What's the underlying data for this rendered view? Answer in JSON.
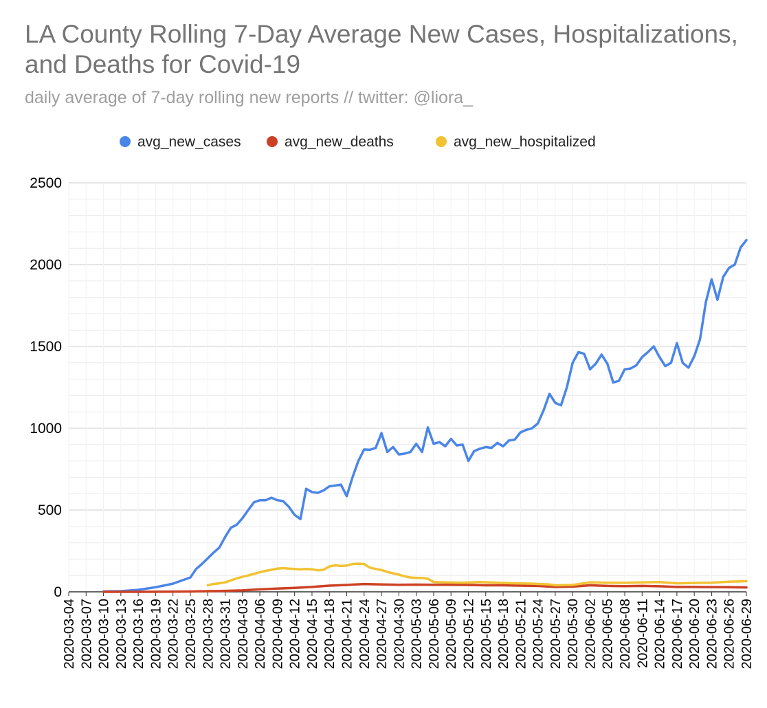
{
  "chart_data": {
    "type": "line",
    "title": "LA County Rolling 7-Day Average New Cases, Hospitalizations, and Deaths for Covid-19",
    "subtitle": "daily average of 7-day rolling new reports // twitter: @liora_",
    "xlabel": "",
    "ylabel": "",
    "ylim": [
      0,
      2500
    ],
    "yticks": [
      0,
      500,
      1000,
      1500,
      2000,
      2500
    ],
    "grid": true,
    "legend_position": "top",
    "x_start": "2020-03-04",
    "x_end": "2020-06-29",
    "x_tick_labels": [
      "2020-03-04",
      "2020-03-07",
      "2020-03-10",
      "2020-03-13",
      "2020-03-16",
      "2020-03-19",
      "2020-03-22",
      "2020-03-25",
      "2020-03-28",
      "2020-03-31",
      "2020-04-03",
      "2020-04-06",
      "2020-04-09",
      "2020-04-12",
      "2020-04-15",
      "2020-04-18",
      "2020-04-21",
      "2020-04-24",
      "2020-04-27",
      "2020-04-30",
      "2020-05-03",
      "2020-05-06",
      "2020-05-09",
      "2020-05-12",
      "2020-05-15",
      "2020-05-18",
      "2020-05-21",
      "2020-05-24",
      "2020-05-27",
      "2020-05-30",
      "2020-06-02",
      "2020-06-05",
      "2020-06-08",
      "2020-06-11",
      "2020-06-14",
      "2020-06-17",
      "2020-06-20",
      "2020-06-23",
      "2020-06-26",
      "2020-06-29"
    ],
    "series": [
      {
        "name": "avg_new_cases",
        "color": "#4a86e8",
        "points": [
          [
            "2020-03-10",
            2
          ],
          [
            "2020-03-13",
            4
          ],
          [
            "2020-03-16",
            12
          ],
          [
            "2020-03-19",
            28
          ],
          [
            "2020-03-22",
            50
          ],
          [
            "2020-03-24",
            75
          ],
          [
            "2020-03-25",
            88
          ],
          [
            "2020-03-26",
            140
          ],
          [
            "2020-03-27",
            170
          ],
          [
            "2020-03-28",
            205
          ],
          [
            "2020-03-29",
            240
          ],
          [
            "2020-03-30",
            270
          ],
          [
            "2020-03-31",
            335
          ],
          [
            "2020-04-01",
            392
          ],
          [
            "2020-04-02",
            410
          ],
          [
            "2020-04-03",
            450
          ],
          [
            "2020-04-04",
            500
          ],
          [
            "2020-04-05",
            548
          ],
          [
            "2020-04-06",
            560
          ],
          [
            "2020-04-07",
            560
          ],
          [
            "2020-04-08",
            575
          ],
          [
            "2020-04-09",
            560
          ],
          [
            "2020-04-10",
            555
          ],
          [
            "2020-04-11",
            520
          ],
          [
            "2020-04-12",
            470
          ],
          [
            "2020-04-13",
            445
          ],
          [
            "2020-04-14",
            630
          ],
          [
            "2020-04-15",
            610
          ],
          [
            "2020-04-16",
            605
          ],
          [
            "2020-04-17",
            620
          ],
          [
            "2020-04-18",
            645
          ],
          [
            "2020-04-19",
            650
          ],
          [
            "2020-04-20",
            655
          ],
          [
            "2020-04-21",
            585
          ],
          [
            "2020-04-22",
            700
          ],
          [
            "2020-04-23",
            800
          ],
          [
            "2020-04-24",
            870
          ],
          [
            "2020-04-25",
            868
          ],
          [
            "2020-04-26",
            880
          ],
          [
            "2020-04-27",
            970
          ],
          [
            "2020-04-28",
            855
          ],
          [
            "2020-04-29",
            885
          ],
          [
            "2020-04-30",
            840
          ],
          [
            "2020-05-01",
            845
          ],
          [
            "2020-05-02",
            855
          ],
          [
            "2020-05-03",
            905
          ],
          [
            "2020-05-04",
            855
          ],
          [
            "2020-05-05",
            1005
          ],
          [
            "2020-05-06",
            905
          ],
          [
            "2020-05-07",
            915
          ],
          [
            "2020-05-08",
            890
          ],
          [
            "2020-05-09",
            935
          ],
          [
            "2020-05-10",
            895
          ],
          [
            "2020-05-11",
            900
          ],
          [
            "2020-05-12",
            800
          ],
          [
            "2020-05-13",
            860
          ],
          [
            "2020-05-14",
            875
          ],
          [
            "2020-05-15",
            885
          ],
          [
            "2020-05-16",
            880
          ],
          [
            "2020-05-17",
            910
          ],
          [
            "2020-05-18",
            890
          ],
          [
            "2020-05-19",
            925
          ],
          [
            "2020-05-20",
            930
          ],
          [
            "2020-05-21",
            975
          ],
          [
            "2020-05-22",
            990
          ],
          [
            "2020-05-23",
            1000
          ],
          [
            "2020-05-24",
            1030
          ],
          [
            "2020-05-25",
            1110
          ],
          [
            "2020-05-26",
            1210
          ],
          [
            "2020-05-27",
            1155
          ],
          [
            "2020-05-28",
            1140
          ],
          [
            "2020-05-29",
            1250
          ],
          [
            "2020-05-30",
            1400
          ],
          [
            "2020-05-31",
            1465
          ],
          [
            "2020-06-01",
            1455
          ],
          [
            "2020-06-02",
            1360
          ],
          [
            "2020-06-03",
            1395
          ],
          [
            "2020-06-04",
            1450
          ],
          [
            "2020-06-05",
            1395
          ],
          [
            "2020-06-06",
            1280
          ],
          [
            "2020-06-07",
            1290
          ],
          [
            "2020-06-08",
            1360
          ],
          [
            "2020-06-09",
            1365
          ],
          [
            "2020-06-10",
            1385
          ],
          [
            "2020-06-11",
            1435
          ],
          [
            "2020-06-12",
            1465
          ],
          [
            "2020-06-13",
            1500
          ],
          [
            "2020-06-14",
            1435
          ],
          [
            "2020-06-15",
            1380
          ],
          [
            "2020-06-16",
            1400
          ],
          [
            "2020-06-17",
            1520
          ],
          [
            "2020-06-18",
            1400
          ],
          [
            "2020-06-19",
            1370
          ],
          [
            "2020-06-20",
            1440
          ],
          [
            "2020-06-21",
            1545
          ],
          [
            "2020-06-22",
            1770
          ],
          [
            "2020-06-23",
            1910
          ],
          [
            "2020-06-24",
            1785
          ],
          [
            "2020-06-25",
            1925
          ],
          [
            "2020-06-26",
            1980
          ],
          [
            "2020-06-27",
            2000
          ],
          [
            "2020-06-28",
            2105
          ],
          [
            "2020-06-29",
            2150
          ]
        ]
      },
      {
        "name": "avg_new_deaths",
        "color": "#cc4125",
        "points": [
          [
            "2020-03-10",
            0
          ],
          [
            "2020-03-16",
            0
          ],
          [
            "2020-03-22",
            1
          ],
          [
            "2020-03-25",
            2
          ],
          [
            "2020-03-28",
            4
          ],
          [
            "2020-03-31",
            6
          ],
          [
            "2020-04-03",
            9
          ],
          [
            "2020-04-06",
            15
          ],
          [
            "2020-04-09",
            20
          ],
          [
            "2020-04-12",
            24
          ],
          [
            "2020-04-15",
            30
          ],
          [
            "2020-04-18",
            38
          ],
          [
            "2020-04-21",
            42
          ],
          [
            "2020-04-24",
            48
          ],
          [
            "2020-04-27",
            45
          ],
          [
            "2020-04-30",
            43
          ],
          [
            "2020-05-03",
            44
          ],
          [
            "2020-05-06",
            43
          ],
          [
            "2020-05-09",
            43
          ],
          [
            "2020-05-12",
            42
          ],
          [
            "2020-05-15",
            40
          ],
          [
            "2020-05-18",
            40
          ],
          [
            "2020-05-21",
            38
          ],
          [
            "2020-05-24",
            36
          ],
          [
            "2020-05-27",
            30
          ],
          [
            "2020-05-30",
            32
          ],
          [
            "2020-06-02",
            40
          ],
          [
            "2020-06-05",
            36
          ],
          [
            "2020-06-08",
            35
          ],
          [
            "2020-06-11",
            36
          ],
          [
            "2020-06-14",
            34
          ],
          [
            "2020-06-17",
            30
          ],
          [
            "2020-06-20",
            30
          ],
          [
            "2020-06-23",
            29
          ],
          [
            "2020-06-26",
            28
          ],
          [
            "2020-06-29",
            27
          ]
        ]
      },
      {
        "name": "avg_new_hospitalized",
        "color": "#f1c232",
        "points": [
          [
            "2020-03-28",
            40
          ],
          [
            "2020-03-29",
            48
          ],
          [
            "2020-03-30",
            52
          ],
          [
            "2020-03-31",
            58
          ],
          [
            "2020-04-01",
            70
          ],
          [
            "2020-04-02",
            82
          ],
          [
            "2020-04-03",
            92
          ],
          [
            "2020-04-04",
            100
          ],
          [
            "2020-04-05",
            110
          ],
          [
            "2020-04-06",
            120
          ],
          [
            "2020-04-07",
            128
          ],
          [
            "2020-04-08",
            135
          ],
          [
            "2020-04-09",
            142
          ],
          [
            "2020-04-10",
            145
          ],
          [
            "2020-04-11",
            142
          ],
          [
            "2020-04-12",
            140
          ],
          [
            "2020-04-13",
            138
          ],
          [
            "2020-04-14",
            140
          ],
          [
            "2020-04-15",
            138
          ],
          [
            "2020-04-16",
            132
          ],
          [
            "2020-04-17",
            135
          ],
          [
            "2020-04-18",
            155
          ],
          [
            "2020-04-19",
            162
          ],
          [
            "2020-04-20",
            158
          ],
          [
            "2020-04-21",
            160
          ],
          [
            "2020-04-22",
            170
          ],
          [
            "2020-04-23",
            172
          ],
          [
            "2020-04-24",
            170
          ],
          [
            "2020-04-25",
            148
          ],
          [
            "2020-04-26",
            140
          ],
          [
            "2020-04-27",
            133
          ],
          [
            "2020-04-28",
            122
          ],
          [
            "2020-04-29",
            113
          ],
          [
            "2020-04-30",
            105
          ],
          [
            "2020-05-01",
            95
          ],
          [
            "2020-05-02",
            88
          ],
          [
            "2020-05-03",
            85
          ],
          [
            "2020-05-04",
            85
          ],
          [
            "2020-05-05",
            80
          ],
          [
            "2020-05-06",
            60
          ],
          [
            "2020-05-08",
            58
          ],
          [
            "2020-05-11",
            56
          ],
          [
            "2020-05-14",
            60
          ],
          [
            "2020-05-17",
            56
          ],
          [
            "2020-05-20",
            52
          ],
          [
            "2020-05-23",
            50
          ],
          [
            "2020-05-26",
            45
          ],
          [
            "2020-05-27",
            40
          ],
          [
            "2020-05-30",
            42
          ],
          [
            "2020-06-02",
            58
          ],
          [
            "2020-06-05",
            56
          ],
          [
            "2020-06-08",
            55
          ],
          [
            "2020-06-11",
            58
          ],
          [
            "2020-06-14",
            60
          ],
          [
            "2020-06-17",
            52
          ],
          [
            "2020-06-20",
            54
          ],
          [
            "2020-06-23",
            56
          ],
          [
            "2020-06-26",
            62
          ],
          [
            "2020-06-29",
            65
          ]
        ]
      }
    ]
  }
}
